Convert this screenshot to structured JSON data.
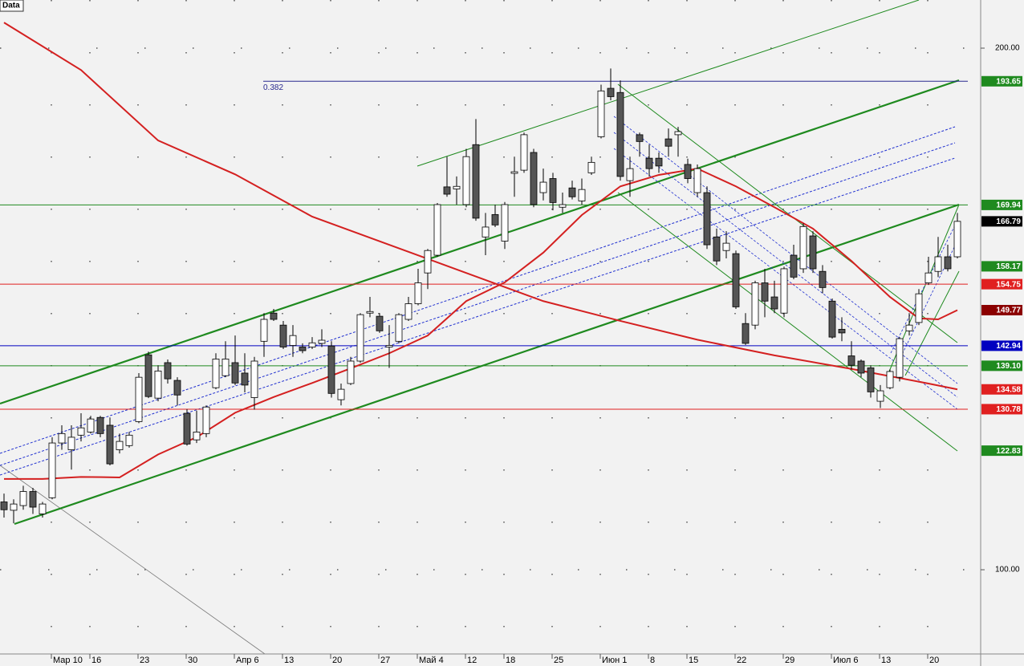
{
  "chart_data": {
    "type": "candlestick",
    "title": "Data",
    "up_color": "#ffffff",
    "down_color": "#555555",
    "ylim": [
      83.85,
      209.23
    ],
    "yticks": [
      {
        "value": 100,
        "label": "100.00"
      },
      {
        "value": 200,
        "label": "200.00"
      }
    ],
    "grid": true,
    "categories": [
      null,
      null,
      null,
      null,
      null,
      "Мар 10",
      null,
      null,
      null,
      "16",
      null,
      null,
      null,
      null,
      "23",
      null,
      null,
      null,
      null,
      "30",
      null,
      null,
      null,
      null,
      "Апр 6",
      null,
      null,
      null,
      null,
      "13",
      null,
      null,
      null,
      null,
      "20",
      null,
      null,
      null,
      null,
      "27",
      null,
      null,
      null,
      "Май 4",
      null,
      null,
      null,
      null,
      "12",
      null,
      null,
      null,
      "18",
      null,
      null,
      null,
      null,
      "25",
      null,
      null,
      null,
      null,
      "Июн 1",
      null,
      null,
      null,
      null,
      "8",
      null,
      null,
      null,
      "15",
      null,
      null,
      null,
      null,
      "22",
      null,
      null,
      null,
      null,
      "29",
      null,
      null,
      null,
      null,
      "Июл 6",
      null,
      null,
      null,
      null,
      "13",
      null,
      null,
      null,
      null,
      "20",
      null,
      null,
      null
    ],
    "ohlc": [
      [
        113.0,
        114.6,
        110.0,
        111.5
      ],
      [
        111.4,
        113.5,
        108.9,
        112.6
      ],
      [
        112.3,
        116.1,
        111.5,
        115.0
      ],
      [
        115.0,
        115.7,
        110.7,
        112.0
      ],
      [
        110.7,
        113.0,
        110.0,
        112.6
      ],
      [
        113.8,
        125.4,
        113.5,
        124.3
      ],
      [
        124.3,
        127.7,
        123.0,
        126.1
      ],
      [
        123.0,
        127.7,
        119.2,
        125.4
      ],
      [
        125.8,
        130.0,
        124.6,
        127.2
      ],
      [
        126.4,
        129.5,
        126.1,
        128.9
      ],
      [
        129.2,
        129.5,
        125.4,
        126.1
      ],
      [
        127.7,
        129.2,
        120.0,
        120.3
      ],
      [
        123.0,
        126.1,
        122.3,
        124.6
      ],
      [
        123.8,
        126.4,
        123.4,
        125.8
      ],
      [
        128.4,
        137.7,
        128.1,
        136.9
      ],
      [
        141.2,
        141.8,
        132.9,
        133.2
      ],
      [
        132.9,
        139.2,
        132.3,
        138.1
      ],
      [
        139.7,
        140.3,
        135.7,
        136.6
      ],
      [
        136.3,
        136.9,
        131.5,
        133.5
      ],
      [
        130.0,
        130.8,
        123.8,
        124.1
      ],
      [
        124.9,
        130.5,
        124.3,
        126.4
      ],
      [
        126.1,
        131.5,
        125.4,
        131.2
      ],
      [
        134.9,
        141.5,
        134.6,
        140.4
      ],
      [
        137.2,
        143.8,
        136.9,
        140.4
      ],
      [
        139.7,
        144.9,
        135.4,
        135.8
      ],
      [
        137.7,
        141.5,
        134.0,
        135.4
      ],
      [
        133.0,
        140.8,
        130.7,
        140.0
      ],
      [
        143.8,
        149.2,
        140.8,
        148.0
      ],
      [
        149.2,
        150.0,
        147.7,
        148.0
      ],
      [
        146.9,
        147.7,
        142.3,
        142.7
      ],
      [
        143.0,
        146.9,
        140.8,
        144.9
      ],
      [
        142.7,
        143.4,
        141.5,
        142.0
      ],
      [
        142.7,
        144.6,
        142.3,
        143.5
      ],
      [
        143.4,
        146.1,
        142.7,
        144.0
      ],
      [
        142.9,
        143.8,
        133.0,
        133.8
      ],
      [
        132.6,
        135.7,
        131.5,
        134.6
      ],
      [
        135.7,
        140.8,
        135.4,
        140.0
      ],
      [
        140.0,
        149.2,
        139.7,
        148.9
      ],
      [
        149.2,
        152.3,
        148.4,
        149.5
      ],
      [
        148.6,
        149.2,
        145.4,
        145.8
      ],
      [
        142.7,
        146.9,
        138.7,
        143.0
      ],
      [
        143.8,
        149.2,
        143.4,
        148.9
      ],
      [
        148.0,
        152.3,
        147.7,
        151.0
      ],
      [
        151.0,
        157.7,
        150.7,
        155.0
      ],
      [
        156.9,
        161.5,
        153.8,
        161.2
      ],
      [
        160.3,
        170.3,
        160.0,
        170.0
      ],
      [
        173.4,
        179.2,
        171.5,
        172.0
      ],
      [
        173.0,
        175.4,
        170.0,
        173.5
      ],
      [
        170.0,
        180.7,
        169.5,
        179.2
      ],
      [
        181.5,
        186.4,
        166.9,
        167.4
      ],
      [
        163.8,
        168.4,
        160.3,
        165.7
      ],
      [
        168.1,
        170.0,
        165.7,
        166.1
      ],
      [
        163.0,
        170.5,
        161.5,
        170.0
      ],
      [
        176.0,
        179.2,
        171.5,
        176.3
      ],
      [
        176.6,
        183.8,
        176.1,
        183.4
      ],
      [
        180.0,
        180.7,
        169.5,
        170.0
      ],
      [
        172.3,
        176.9,
        170.8,
        174.3
      ],
      [
        175.0,
        176.1,
        168.9,
        170.4
      ],
      [
        169.5,
        172.3,
        168.4,
        170.0
      ],
      [
        173.2,
        174.6,
        171.0,
        171.5
      ],
      [
        170.7,
        175.0,
        170.0,
        172.9
      ],
      [
        176.1,
        179.2,
        175.7,
        178.1
      ],
      [
        183.0,
        193.0,
        182.7,
        191.8
      ],
      [
        192.3,
        196.1,
        190.0,
        190.7
      ],
      [
        191.5,
        193.8,
        174.6,
        175.4
      ],
      [
        174.6,
        179.2,
        171.5,
        176.9
      ],
      [
        183.4,
        183.8,
        179.2,
        182.1
      ],
      [
        178.9,
        181.5,
        175.4,
        176.9
      ],
      [
        178.9,
        180.0,
        176.1,
        177.4
      ],
      [
        182.6,
        184.6,
        179.2,
        181.2
      ],
      [
        183.4,
        184.9,
        179.2,
        184.0
      ],
      [
        177.7,
        178.8,
        174.1,
        175.0
      ],
      [
        172.3,
        177.7,
        171.5,
        176.9
      ],
      [
        172.3,
        173.5,
        161.5,
        162.3
      ],
      [
        163.8,
        165.4,
        158.4,
        159.2
      ],
      [
        161.2,
        164.9,
        159.7,
        162.6
      ],
      [
        160.6,
        161.2,
        150.0,
        150.4
      ],
      [
        147.2,
        149.2,
        143.1,
        143.4
      ],
      [
        146.9,
        155.4,
        146.1,
        155.0
      ],
      [
        155.0,
        157.7,
        148.4,
        151.5
      ],
      [
        152.3,
        155.4,
        149.2,
        150.0
      ],
      [
        149.2,
        158.1,
        148.4,
        157.7
      ],
      [
        160.3,
        162.3,
        155.7,
        156.1
      ],
      [
        157.7,
        166.4,
        156.9,
        165.8
      ],
      [
        164.0,
        164.9,
        156.9,
        157.7
      ],
      [
        157.2,
        158.4,
        153.0,
        154.1
      ],
      [
        151.5,
        152.0,
        144.3,
        144.6
      ],
      [
        146.1,
        148.4,
        143.8,
        145.4
      ],
      [
        141.0,
        143.8,
        138.4,
        139.2
      ],
      [
        140.0,
        140.3,
        136.9,
        137.7
      ],
      [
        138.7,
        139.2,
        133.0,
        134.1
      ],
      [
        132.3,
        135.4,
        131.0,
        134.3
      ],
      [
        134.9,
        138.4,
        134.6,
        138.0
      ],
      [
        136.9,
        144.6,
        136.1,
        144.3
      ],
      [
        145.8,
        149.2,
        144.9,
        146.9
      ],
      [
        147.4,
        153.8,
        146.9,
        152.9
      ],
      [
        155.0,
        160.0,
        154.6,
        156.9
      ],
      [
        157.2,
        163.8,
        156.1,
        160.0
      ],
      [
        160.0,
        162.3,
        157.2,
        157.7
      ],
      [
        160.0,
        168.4,
        159.7,
        166.79
      ]
    ],
    "indicators": [
      {
        "color": "#d42020",
        "x": [
          0,
          4,
          8,
          12,
          16,
          20,
          24,
          28,
          32,
          36,
          40,
          44,
          48,
          52,
          56,
          60,
          64,
          68,
          72,
          76,
          80,
          84,
          88,
          92,
          95,
          97,
          99
        ],
        "values": [
          117.4,
          117.4,
          117.8,
          117.7,
          122.1,
          125.4,
          130.1,
          133.1,
          135.8,
          138.6,
          141.5,
          144.9,
          151.5,
          155.1,
          160.8,
          168.0,
          173.5,
          175.7,
          176.9,
          173.5,
          169.5,
          165.4,
          159.2,
          152.3,
          148.2,
          148.0,
          149.77
        ]
      },
      {
        "color": "#d42020",
        "x": [
          0,
          8,
          16,
          24,
          32,
          40,
          48,
          56,
          64,
          72,
          80,
          88,
          96,
          99
        ],
        "values": [
          204.9,
          195.8,
          182.3,
          175.8,
          167.7,
          162.3,
          156.9,
          151.5,
          147.7,
          144.1,
          141.1,
          138.5,
          135.7,
          134.58
        ]
      }
    ],
    "levels": [
      {
        "value": 193.65,
        "color": "#1f8a1f",
        "line_color": "#2a2a90",
        "note": "0.382"
      },
      {
        "value": 169.94,
        "color": "#1f8a1f",
        "line_color": "#1f8a1f"
      },
      {
        "value": 166.79,
        "color": "#000000"
      },
      {
        "value": 158.17,
        "color": "#1f8a1f"
      },
      {
        "value": 154.75,
        "color": "#e02020",
        "line_color": "#e02020"
      },
      {
        "value": 149.77,
        "color": "#8b0000"
      },
      {
        "value": 142.94,
        "color": "#0000c0",
        "line_color": "#0000c0"
      },
      {
        "value": 139.1,
        "label": "139.10",
        "color": "#1f8a1f",
        "line_color": "#1f8a1f"
      },
      {
        "value": 134.58,
        "color": "#e02020"
      },
      {
        "value": 130.78,
        "color": "#e02020",
        "line_color": "#e02020"
      },
      {
        "value": 122.83,
        "color": "#1f8a1f"
      }
    ]
  }
}
